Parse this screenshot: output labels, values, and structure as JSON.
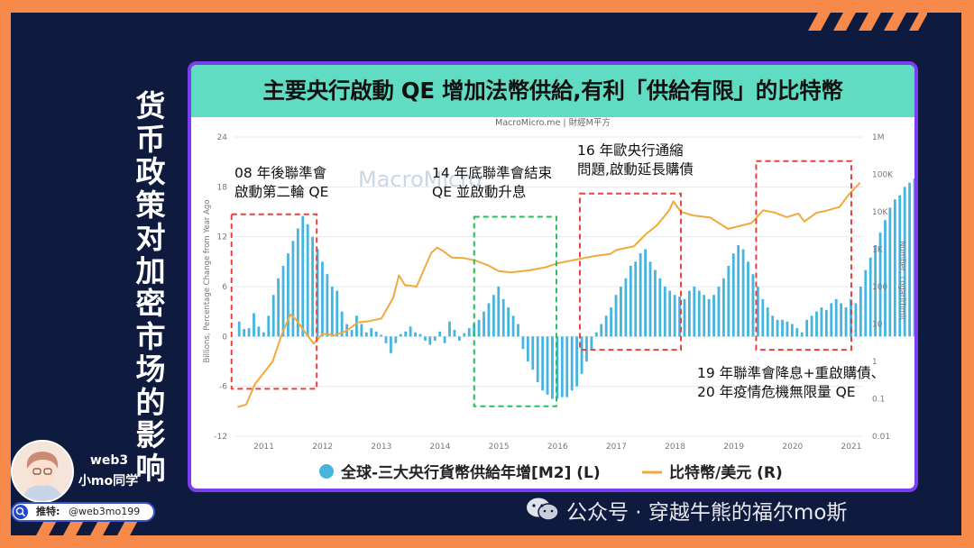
{
  "side_title": "货币政策对加密市场的影响",
  "brand": {
    "line1": "web3",
    "line2": "小mo同学"
  },
  "twitter": {
    "label": "推特:",
    "handle": "@web3mo199"
  },
  "wechat": {
    "text": "公众号 · 穿越牛熊的福尔mo斯",
    "icon": "wechat-icon"
  },
  "colors": {
    "background": "#f7894a",
    "navy": "#0e1b3e",
    "frame": "#7b3df0",
    "banner": "#5fdcc2",
    "bar": "#45b5e0",
    "line": "#f2a93b",
    "red_box": "#e8413c",
    "green_box": "#2bbd57"
  },
  "chart_data": {
    "type": "bar",
    "title": "主要央行啟動 QE 增加法幣供給,有利「供給有限」的比特幣",
    "source": "MacroMicro.me | 財經M平方",
    "watermark": "MacroMicro",
    "ylabel_left": "Billions, Percentage Change from Year Ago",
    "ylabel_right": "Number, Logarithmic",
    "left_ticks": [
      "24",
      "18",
      "12",
      "6",
      "0",
      "-6",
      "-12"
    ],
    "left_ylim": [
      -12,
      24
    ],
    "right_ticks": [
      "1M",
      "100K",
      "10K",
      "1K",
      "100",
      "10",
      "1",
      "0.1",
      "0.01"
    ],
    "right_scale": "log",
    "right_ylim": [
      0.01,
      1000000
    ],
    "x_ticks": [
      "2011",
      "2012",
      "2013",
      "2014",
      "2015",
      "2016",
      "2017",
      "2018",
      "2019",
      "2020",
      "2021"
    ],
    "x_range": [
      2010.5,
      2021.2
    ],
    "legend": [
      {
        "name": "全球-三大央行貨幣供給年增[M2] (L)",
        "color": "#45b5e0",
        "shape": "circle"
      },
      {
        "name": "比特幣/美元 (R)",
        "color": "#f2a93b",
        "shape": "line"
      }
    ],
    "bars": {
      "name": "全球-三大央行貨幣供給年增[M2] (L)",
      "start": 2010.58,
      "step": 0.0833,
      "values": [
        1.8,
        0.9,
        1.0,
        2.8,
        1.2,
        0.5,
        2.5,
        5.0,
        7.0,
        8.5,
        10.0,
        11.5,
        13.0,
        14.5,
        13.5,
        12.0,
        10.5,
        9.0,
        7.5,
        6.0,
        5.5,
        3.0,
        1.5,
        0.8,
        2.5,
        1.5,
        0.5,
        1.0,
        0.6,
        0.2,
        -0.8,
        -2.0,
        -0.8,
        0.3,
        0.6,
        1.2,
        0.5,
        0.3,
        -0.5,
        -1.0,
        -0.5,
        0.6,
        -0.8,
        1.8,
        0.8,
        -0.5,
        0.4,
        1.0,
        1.5,
        2.0,
        3.0,
        4.0,
        5.0,
        6.0,
        4.5,
        3.5,
        2.5,
        1.5,
        -1.5,
        -3.0,
        -4.0,
        -5.5,
        -6.5,
        -7.0,
        -7.5,
        -7.5,
        -7.3,
        -7.3,
        -6.5,
        -6.0,
        -4.5,
        -3.0,
        -1.5,
        0.5,
        1.5,
        2.5,
        3.5,
        5.0,
        6.0,
        7.0,
        8.5,
        9.0,
        10.0,
        10.5,
        9.0,
        8.0,
        7.0,
        6.0,
        5.5,
        5.0,
        4.8,
        4.5,
        5.5,
        6.0,
        5.5,
        5.0,
        4.5,
        5.0,
        6.0,
        7.0,
        8.5,
        10.0,
        11.0,
        10.5,
        9.0,
        7.5,
        6.0,
        4.5,
        3.5,
        2.5,
        2.0,
        2.0,
        1.8,
        1.5,
        1.0,
        0.5,
        2.0,
        2.5,
        3.0,
        3.5,
        3.2,
        4.0,
        4.5,
        4.0,
        3.5,
        4.5,
        4.0,
        6.0,
        8.0,
        9.5,
        11.0,
        12.5,
        14.0,
        15.5,
        16.5,
        17.0,
        18.0,
        18.5,
        19.0,
        20.0,
        18.5,
        16.0
      ]
    },
    "bitcoin": {
      "name": "比特幣/美元 (R)",
      "points": [
        [
          2010.55,
          0.06
        ],
        [
          2010.7,
          0.07
        ],
        [
          2010.85,
          0.25
        ],
        [
          2011.0,
          0.5
        ],
        [
          2011.15,
          1.0
        ],
        [
          2011.3,
          5.0
        ],
        [
          2011.45,
          18.0
        ],
        [
          2011.55,
          13.0
        ],
        [
          2011.7,
          6.0
        ],
        [
          2011.85,
          3.0
        ],
        [
          2012.0,
          5.5
        ],
        [
          2012.2,
          5.0
        ],
        [
          2012.4,
          6.5
        ],
        [
          2012.6,
          11.0
        ],
        [
          2012.8,
          12.0
        ],
        [
          2013.0,
          14.0
        ],
        [
          2013.2,
          50.0
        ],
        [
          2013.3,
          200.0
        ],
        [
          2013.4,
          110.0
        ],
        [
          2013.6,
          100.0
        ],
        [
          2013.85,
          800.0
        ],
        [
          2013.95,
          1100.0
        ],
        [
          2014.05,
          900.0
        ],
        [
          2014.2,
          600.0
        ],
        [
          2014.4,
          580.0
        ],
        [
          2014.6,
          500.0
        ],
        [
          2014.8,
          380.0
        ],
        [
          2015.0,
          260.0
        ],
        [
          2015.2,
          240.0
        ],
        [
          2015.5,
          270.0
        ],
        [
          2015.8,
          330.0
        ],
        [
          2016.0,
          420.0
        ],
        [
          2016.4,
          560.0
        ],
        [
          2016.6,
          650.0
        ],
        [
          2016.9,
          750.0
        ],
        [
          2017.0,
          950.0
        ],
        [
          2017.3,
          1200.0
        ],
        [
          2017.5,
          2500.0
        ],
        [
          2017.7,
          4500.0
        ],
        [
          2017.9,
          11000.0
        ],
        [
          2017.97,
          19000.0
        ],
        [
          2018.1,
          10000.0
        ],
        [
          2018.3,
          8000.0
        ],
        [
          2018.6,
          7000.0
        ],
        [
          2018.9,
          3500.0
        ],
        [
          2019.0,
          3800.0
        ],
        [
          2019.3,
          5000.0
        ],
        [
          2019.5,
          11000.0
        ],
        [
          2019.7,
          9500.0
        ],
        [
          2019.9,
          7200.0
        ],
        [
          2020.1,
          9000.0
        ],
        [
          2020.2,
          5500.0
        ],
        [
          2020.4,
          9300.0
        ],
        [
          2020.6,
          11000.0
        ],
        [
          2020.8,
          13500.0
        ],
        [
          2020.95,
          28000.0
        ],
        [
          2021.1,
          50000.0
        ],
        [
          2021.15,
          60000.0
        ]
      ]
    },
    "annotations": [
      {
        "text": [
          "08 年後聯準會",
          "啟動第二輪 QE"
        ],
        "box_color": "red",
        "x_range": [
          2010.45,
          2011.9
        ],
        "y_range": [
          -6.3,
          14.7
        ]
      },
      {
        "text": [
          "14 年底聯準會結束",
          "QE 並啟動升息"
        ],
        "box_color": "green",
        "x_range": [
          2014.58,
          2015.98
        ],
        "y_range": [
          -8.4,
          14.4
        ]
      },
      {
        "text": [
          "16 年歐央行通縮",
          "問題,啟動延長購債"
        ],
        "box_color": "red",
        "x_range": [
          2016.38,
          2018.1
        ],
        "y_range": [
          -1.6,
          17.2
        ]
      },
      {
        "text": [
          "19 年聯準會降息+重啟購債、",
          "20 年疫情危機無限量 QE"
        ],
        "box_color": "red",
        "x_range": [
          2019.38,
          2021.0
        ],
        "y_range": [
          -1.6,
          21.1
        ]
      }
    ]
  }
}
